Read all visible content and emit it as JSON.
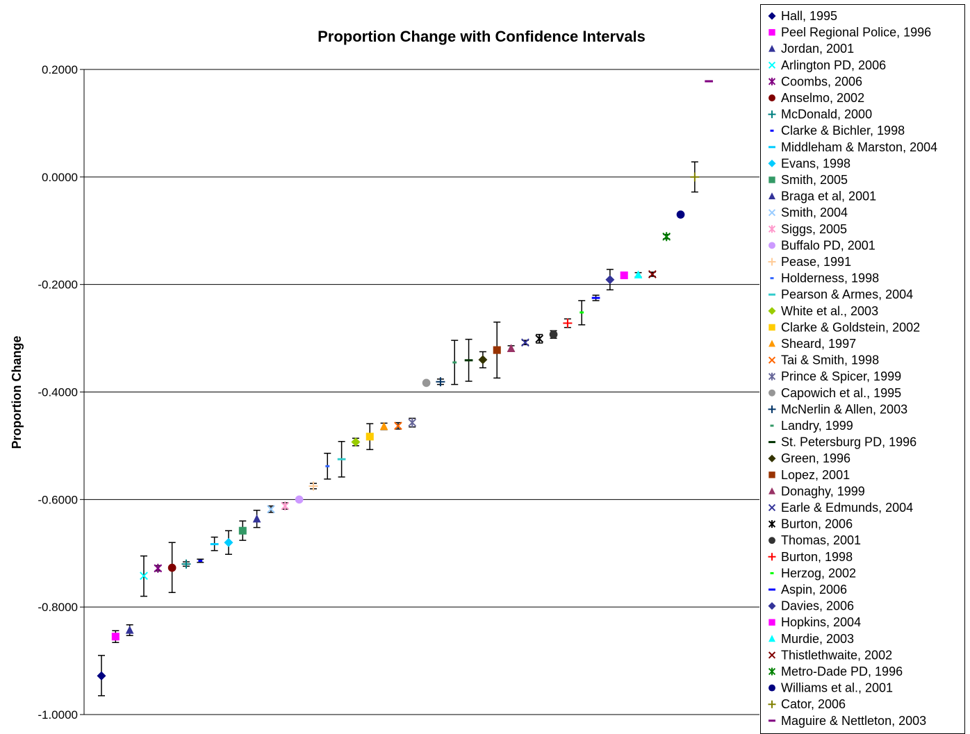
{
  "chart_data": {
    "type": "scatter",
    "title": "Proportion Change with Confidence Intervals",
    "ylabel": "Proportion Change",
    "xlabel": "",
    "ylim": [
      -1.0,
      0.2
    ],
    "yticks": [
      "0.2000",
      "0.0000",
      "-0.2000",
      "-0.4000",
      "-0.6000",
      "-0.8000",
      "-1.0000"
    ],
    "ytick_values": [
      0.2,
      0.0,
      -0.2,
      -0.4,
      -0.6,
      -0.8,
      -1.0
    ],
    "grid": "horizontal",
    "legend_position": "right",
    "series": [
      {
        "name": "Hall, 1995",
        "x": 1,
        "y": -0.928,
        "lo": -0.965,
        "hi": -0.89,
        "color": "#000080",
        "marker": "diamond"
      },
      {
        "name": "Peel Regional Police, 1996",
        "x": 2,
        "y": -0.855,
        "lo": -0.866,
        "hi": -0.844,
        "color": "#ff00ff",
        "marker": "square"
      },
      {
        "name": "Jordan, 2001",
        "x": 3,
        "y": -0.843,
        "lo": -0.853,
        "hi": -0.833,
        "color": "#333399",
        "marker": "triangle"
      },
      {
        "name": "Arlington PD, 2006",
        "x": 4,
        "y": -0.742,
        "lo": -0.78,
        "hi": -0.705,
        "color": "#00ffff",
        "marker": "x"
      },
      {
        "name": "Coombs, 2006",
        "x": 5,
        "y": -0.728,
        "lo": -0.733,
        "hi": -0.723,
        "color": "#800080",
        "marker": "star"
      },
      {
        "name": "Anselmo, 2002",
        "x": 6,
        "y": -0.727,
        "lo": -0.773,
        "hi": -0.68,
        "color": "#800000",
        "marker": "circle"
      },
      {
        "name": "McDonald, 2000",
        "x": 7,
        "y": -0.72,
        "lo": -0.724,
        "hi": -0.716,
        "color": "#008080",
        "marker": "plus"
      },
      {
        "name": "Clarke & Bichler, 1998",
        "x": 8,
        "y": -0.714,
        "lo": -0.717,
        "hi": -0.711,
        "color": "#0000ff",
        "marker": "shortdash"
      },
      {
        "name": "Middleham & Marston, 2004",
        "x": 9,
        "y": -0.683,
        "lo": -0.695,
        "hi": -0.67,
        "color": "#00ccff",
        "marker": "dash"
      },
      {
        "name": "Evans, 1998",
        "x": 10,
        "y": -0.68,
        "lo": -0.702,
        "hi": -0.658,
        "color": "#00ccff",
        "marker": "diamond"
      },
      {
        "name": "Smith, 2005",
        "x": 11,
        "y": -0.658,
        "lo": -0.676,
        "hi": -0.64,
        "color": "#339966",
        "marker": "square"
      },
      {
        "name": "Braga et al, 2001",
        "x": 12,
        "y": -0.636,
        "lo": -0.652,
        "hi": -0.62,
        "color": "#333399",
        "marker": "triangle"
      },
      {
        "name": "Smith, 2004",
        "x": 13,
        "y": -0.618,
        "lo": -0.624,
        "hi": -0.612,
        "color": "#99ccff",
        "marker": "x"
      },
      {
        "name": "Siggs, 2005",
        "x": 14,
        "y": -0.612,
        "lo": -0.618,
        "hi": -0.606,
        "color": "#ff99cc",
        "marker": "star"
      },
      {
        "name": "Buffalo PD, 2001",
        "x": 15,
        "y": -0.6,
        "lo": -0.602,
        "hi": -0.598,
        "color": "#cc99ff",
        "marker": "circle"
      },
      {
        "name": "Pease, 1991",
        "x": 16,
        "y": -0.575,
        "lo": -0.58,
        "hi": -0.57,
        "color": "#ffcc99",
        "marker": "plus"
      },
      {
        "name": "Holderness, 1998",
        "x": 17,
        "y": -0.538,
        "lo": -0.562,
        "hi": -0.514,
        "color": "#3366ff",
        "marker": "shortdash"
      },
      {
        "name": "Pearson & Armes, 2004",
        "x": 18,
        "y": -0.525,
        "lo": -0.558,
        "hi": -0.492,
        "color": "#33cccc",
        "marker": "dash"
      },
      {
        "name": "White et al., 2003",
        "x": 19,
        "y": -0.493,
        "lo": -0.5,
        "hi": -0.486,
        "color": "#99cc00",
        "marker": "diamond"
      },
      {
        "name": "Clarke & Goldstein, 2002",
        "x": 20,
        "y": -0.483,
        "lo": -0.507,
        "hi": -0.459,
        "color": "#ffcc00",
        "marker": "square"
      },
      {
        "name": "Sheard, 1997",
        "x": 21,
        "y": -0.464,
        "lo": -0.47,
        "hi": -0.458,
        "color": "#ff9900",
        "marker": "triangle"
      },
      {
        "name": "Tai & Smith, 1998",
        "x": 22,
        "y": -0.463,
        "lo": -0.469,
        "hi": -0.457,
        "color": "#ff6600",
        "marker": "x"
      },
      {
        "name": "Prince & Spicer, 1999",
        "x": 23,
        "y": -0.457,
        "lo": -0.465,
        "hi": -0.449,
        "color": "#666699",
        "marker": "star"
      },
      {
        "name": "Capowich et al., 1995",
        "x": 24,
        "y": -0.383,
        "lo": -0.385,
        "hi": -0.381,
        "color": "#969696",
        "marker": "circle"
      },
      {
        "name": "McNerlin & Allen, 2003",
        "x": 25,
        "y": -0.381,
        "lo": -0.386,
        "hi": -0.376,
        "color": "#003366",
        "marker": "plus"
      },
      {
        "name": "Landry, 1999",
        "x": 26,
        "y": -0.345,
        "lo": -0.386,
        "hi": -0.304,
        "color": "#339966",
        "marker": "shortdash"
      },
      {
        "name": "St. Petersburg PD, 1996",
        "x": 27,
        "y": -0.341,
        "lo": -0.38,
        "hi": -0.302,
        "color": "#003300",
        "marker": "dash"
      },
      {
        "name": "Green, 1996",
        "x": 28,
        "y": -0.34,
        "lo": -0.355,
        "hi": -0.325,
        "color": "#333300",
        "marker": "diamond"
      },
      {
        "name": "Lopez, 2001",
        "x": 29,
        "y": -0.322,
        "lo": -0.374,
        "hi": -0.27,
        "color": "#993300",
        "marker": "square"
      },
      {
        "name": "Donaghy, 1999",
        "x": 30,
        "y": -0.319,
        "lo": -0.324,
        "hi": -0.314,
        "color": "#993366",
        "marker": "triangle"
      },
      {
        "name": "Earle & Edmunds, 2004",
        "x": 31,
        "y": -0.308,
        "lo": -0.312,
        "hi": -0.304,
        "color": "#333399",
        "marker": "x"
      },
      {
        "name": "Burton, 2006",
        "x": 32,
        "y": -0.301,
        "lo": -0.309,
        "hi": -0.293,
        "color": "#000000",
        "marker": "star"
      },
      {
        "name": "Thomas, 2001",
        "x": 33,
        "y": -0.293,
        "lo": -0.3,
        "hi": -0.286,
        "color": "#333333",
        "marker": "circle"
      },
      {
        "name": "Burton, 1998",
        "x": 34,
        "y": -0.272,
        "lo": -0.28,
        "hi": -0.264,
        "color": "#ff0000",
        "marker": "plus"
      },
      {
        "name": "Herzog, 2002",
        "x": 35,
        "y": -0.252,
        "lo": -0.275,
        "hi": -0.23,
        "color": "#00ff00",
        "marker": "shortdash"
      },
      {
        "name": "Aspin, 2006",
        "x": 36,
        "y": -0.225,
        "lo": -0.23,
        "hi": -0.22,
        "color": "#0000ff",
        "marker": "dash"
      },
      {
        "name": "Davies, 2006",
        "x": 37,
        "y": -0.191,
        "lo": -0.21,
        "hi": -0.172,
        "color": "#333399",
        "marker": "diamond"
      },
      {
        "name": "Hopkins, 2004",
        "x": 38,
        "y": -0.183,
        "lo": -0.186,
        "hi": -0.18,
        "color": "#ff00ff",
        "marker": "square"
      },
      {
        "name": "Murdie, 2003",
        "x": 39,
        "y": -0.182,
        "lo": -0.186,
        "hi": -0.178,
        "color": "#00ffff",
        "marker": "triangle"
      },
      {
        "name": "Thistlethwaite, 2002",
        "x": 40,
        "y": -0.181,
        "lo": -0.185,
        "hi": -0.177,
        "color": "#800000",
        "marker": "x"
      },
      {
        "name": "Metro-Dade PD, 1996",
        "x": 41,
        "y": -0.111,
        "lo": -0.115,
        "hi": -0.107,
        "color": "#008000",
        "marker": "star"
      },
      {
        "name": "Williams et al., 2001",
        "x": 42,
        "y": -0.07,
        "lo": -0.072,
        "hi": -0.068,
        "color": "#000080",
        "marker": "circle"
      },
      {
        "name": "Cator, 2006",
        "x": 43,
        "y": 0.0,
        "lo": -0.028,
        "hi": 0.028,
        "color": "#808000",
        "marker": "plus"
      },
      {
        "name": "Maguire & Nettleton, 2003",
        "x": 44,
        "y": 0.178,
        "lo": 0.177,
        "hi": 0.179,
        "color": "#800080",
        "marker": "dash"
      }
    ]
  }
}
